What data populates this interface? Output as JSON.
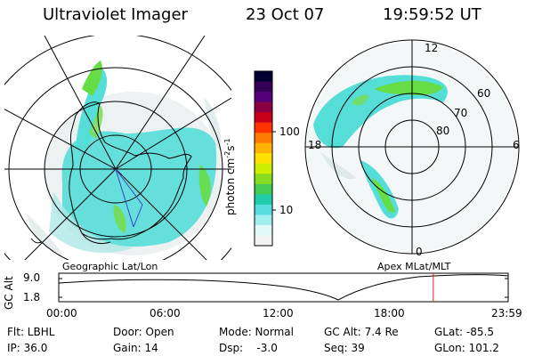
{
  "header": {
    "instrument": "Ultraviolet Imager",
    "date": "23 Oct 07",
    "time": "19:59:52 UT"
  },
  "geo_panel": {
    "label": "Geographic Lat/Lon"
  },
  "polar_panel": {
    "label": "Apex MLat/MLT",
    "mlt_labels": [
      "12",
      "18",
      "6",
      "0"
    ],
    "mlat_labels": [
      "60",
      "70",
      "80"
    ]
  },
  "colorbar": {
    "label": "photon cm",
    "label_sup1": "-2",
    "label_mid": "s",
    "label_sup2": "-1",
    "ticks": [
      "100",
      "10"
    ],
    "colors": [
      "#000033",
      "#330055",
      "#55007a",
      "#8a0044",
      "#c8001a",
      "#ff3300",
      "#ff7a00",
      "#ffb300",
      "#ffe000",
      "#ccee00",
      "#88dd22",
      "#44cc55",
      "#22ccaa",
      "#55dde0",
      "#a0eef0",
      "#e0f8f8",
      "#f4f4f4"
    ]
  },
  "altitude_plot": {
    "ylabel": "GC Alt",
    "yticks": [
      "9.0",
      "1.8"
    ],
    "xticks": [
      "00:00",
      "06:00",
      "12:00",
      "18:00",
      "23:59"
    ],
    "current_time_fraction": 0.8333
  },
  "status": {
    "filter": "Flt: LBHL",
    "door": "Door: Open",
    "mode": "Mode: Normal",
    "gc_alt": "GC Alt: 7.4 Re",
    "glat": "GLat: -85.5",
    "ip": "IP: 36.0",
    "gain": "Gain: 14",
    "dsp": "Dsp:    -3.0",
    "seq": "Seq: 39",
    "glon": "GLon: 101.2"
  },
  "colors": {
    "aurora_cyan": "#55ddd8",
    "aurora_green": "#66dd44",
    "time_marker": "#dd2222"
  }
}
